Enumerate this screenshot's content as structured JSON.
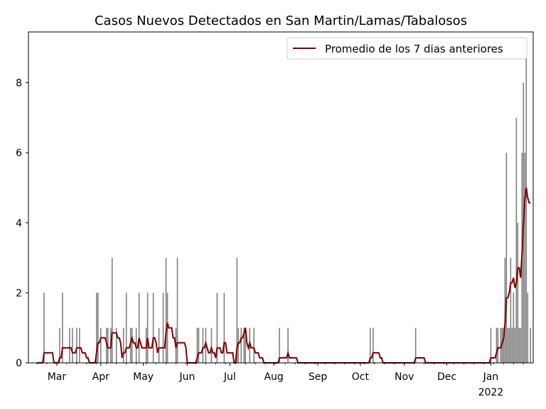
{
  "chart_data": {
    "type": "bar",
    "title": "Casos Nuevos Detectados en San Martin/Lamas/Tabalosos",
    "xlabel": "",
    "ylabel": "",
    "ylim": [
      0,
      9.45
    ],
    "yticks": [
      "0",
      "2",
      "4",
      "6",
      "8"
    ],
    "start_date": "2021-02-15",
    "num_days": 349,
    "xticks": [
      {
        "label": "Mar",
        "day": 14
      },
      {
        "label": "Apr",
        "day": 45
      },
      {
        "label": "May",
        "day": 75
      },
      {
        "label": "Jun",
        "day": 106
      },
      {
        "label": "Jul",
        "day": 136
      },
      {
        "label": "Aug",
        "day": 167
      },
      {
        "label": "Sep",
        "day": 198
      },
      {
        "label": "Oct",
        "day": 228
      },
      {
        "label": "Nov",
        "day": 259
      },
      {
        "label": "Dec",
        "day": 289
      },
      {
        "label": "Jan",
        "day": 320,
        "sublabel": "2022"
      }
    ],
    "nonzero_days": [
      [
        5,
        2
      ],
      [
        16,
        1
      ],
      [
        18,
        2
      ],
      [
        23,
        1
      ],
      [
        25,
        1
      ],
      [
        28,
        1
      ],
      [
        30,
        1
      ],
      [
        42,
        2
      ],
      [
        43,
        2
      ],
      [
        45,
        1
      ],
      [
        49,
        1
      ],
      [
        50,
        1
      ],
      [
        52,
        1
      ],
      [
        53,
        3
      ],
      [
        56,
        1
      ],
      [
        61,
        1
      ],
      [
        63,
        2
      ],
      [
        66,
        1
      ],
      [
        67,
        1
      ],
      [
        70,
        1
      ],
      [
        72,
        2
      ],
      [
        77,
        1
      ],
      [
        78,
        2
      ],
      [
        82,
        2
      ],
      [
        86,
        1
      ],
      [
        89,
        2
      ],
      [
        91,
        3
      ],
      [
        92,
        2
      ],
      [
        98,
        1
      ],
      [
        99,
        3
      ],
      [
        113,
        1
      ],
      [
        114,
        1
      ],
      [
        117,
        1
      ],
      [
        119,
        1
      ],
      [
        123,
        1
      ],
      [
        127,
        2
      ],
      [
        132,
        2
      ],
      [
        141,
        3
      ],
      [
        142,
        1
      ],
      [
        144,
        1
      ],
      [
        146,
        1
      ],
      [
        147,
        1
      ],
      [
        150,
        1
      ],
      [
        153,
        1
      ],
      [
        171,
        1
      ],
      [
        177,
        1
      ],
      [
        235,
        1
      ],
      [
        237,
        1
      ],
      [
        267,
        1
      ],
      [
        320,
        1
      ],
      [
        324,
        1
      ],
      [
        325,
        1
      ],
      [
        327,
        1
      ],
      [
        328,
        1
      ],
      [
        329,
        1
      ],
      [
        330,
        3
      ],
      [
        331,
        6
      ],
      [
        332,
        1
      ],
      [
        333,
        1
      ],
      [
        334,
        3
      ],
      [
        335,
        1
      ],
      [
        336,
        2
      ],
      [
        337,
        1
      ],
      [
        338,
        7
      ],
      [
        339,
        4
      ],
      [
        340,
        1
      ],
      [
        341,
        1
      ],
      [
        342,
        6
      ],
      [
        343,
        8
      ],
      [
        344,
        6
      ],
      [
        345,
        9
      ],
      [
        346,
        2
      ],
      [
        348,
        1
      ]
    ],
    "bar_color": "#808080",
    "series": [
      {
        "name": "Promedio de los 7 dias anteriores",
        "type": "line",
        "window": 7,
        "color": "#800000"
      }
    ],
    "legend": {
      "position": "top-right"
    }
  }
}
